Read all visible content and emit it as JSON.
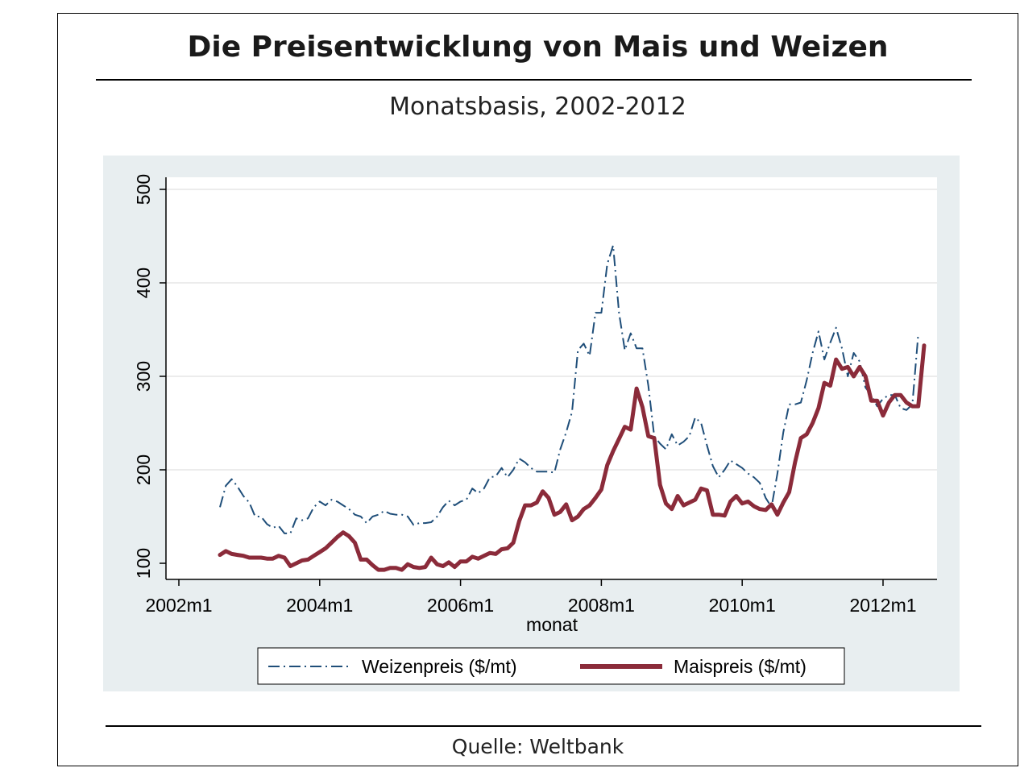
{
  "page": {
    "title": "Die Preisentwicklung von Mais und Weizen",
    "subtitle": "Monatsbasis, 2002-2012",
    "source": "Quelle:  Weltbank"
  },
  "chart_data": {
    "type": "line",
    "title": "Die Preisentwicklung von Mais und Weizen",
    "subtitle": "Monatsbasis, 2002-2012",
    "xlabel": "monat",
    "ylabel": "",
    "xlim": [
      2002.0,
      2012.75
    ],
    "ylim": [
      80,
      515
    ],
    "xticks": [
      {
        "value": 2002,
        "label": "2002m1"
      },
      {
        "value": 2004,
        "label": "2004m1"
      },
      {
        "value": 2006,
        "label": "2006m1"
      },
      {
        "value": 2008,
        "label": "2008m1"
      },
      {
        "value": 2010,
        "label": "2010m1"
      },
      {
        "value": 2012,
        "label": "2012m1"
      }
    ],
    "yticks": [
      100,
      200,
      300,
      400,
      500
    ],
    "grid": true,
    "legend_position": "bottom",
    "colors": {
      "wheat": "#1f4e79",
      "maize": "#8b2b3a",
      "plot_bg": "#ffffff",
      "outer_bg": "#e8eef0"
    },
    "series": [
      {
        "name": "Weizenpreis ($/mt)",
        "style": "dash-dot",
        "points": [
          [
            2002.583,
            160
          ],
          [
            2002.667,
            183
          ],
          [
            2002.75,
            190
          ],
          [
            2002.833,
            182
          ],
          [
            2002.917,
            172
          ],
          [
            2003.0,
            165
          ],
          [
            2003.083,
            150
          ],
          [
            2003.167,
            150
          ],
          [
            2003.25,
            142
          ],
          [
            2003.333,
            138
          ],
          [
            2003.417,
            140
          ],
          [
            2003.5,
            132
          ],
          [
            2003.583,
            132
          ],
          [
            2003.667,
            148
          ],
          [
            2003.75,
            146
          ],
          [
            2003.833,
            148
          ],
          [
            2003.917,
            160
          ],
          [
            2004.0,
            166
          ],
          [
            2004.083,
            162
          ],
          [
            2004.167,
            168
          ],
          [
            2004.25,
            166
          ],
          [
            2004.333,
            162
          ],
          [
            2004.417,
            158
          ],
          [
            2004.5,
            152
          ],
          [
            2004.583,
            150
          ],
          [
            2004.667,
            143
          ],
          [
            2004.75,
            150
          ],
          [
            2004.833,
            152
          ],
          [
            2004.917,
            156
          ],
          [
            2005.0,
            153
          ],
          [
            2005.083,
            152
          ],
          [
            2005.167,
            152
          ],
          [
            2005.25,
            150
          ],
          [
            2005.333,
            141
          ],
          [
            2005.417,
            143
          ],
          [
            2005.5,
            143
          ],
          [
            2005.583,
            144
          ],
          [
            2005.667,
            150
          ],
          [
            2005.75,
            160
          ],
          [
            2005.833,
            167
          ],
          [
            2005.917,
            162
          ],
          [
            2006.0,
            166
          ],
          [
            2006.083,
            168
          ],
          [
            2006.167,
            180
          ],
          [
            2006.25,
            175
          ],
          [
            2006.333,
            180
          ],
          [
            2006.417,
            192
          ],
          [
            2006.5,
            193
          ],
          [
            2006.583,
            202
          ],
          [
            2006.667,
            192
          ],
          [
            2006.75,
            200
          ],
          [
            2006.833,
            212
          ],
          [
            2006.917,
            208
          ],
          [
            2007.0,
            202
          ],
          [
            2007.083,
            198
          ],
          [
            2007.167,
            198
          ],
          [
            2007.25,
            198
          ],
          [
            2007.333,
            197
          ],
          [
            2007.417,
            222
          ],
          [
            2007.5,
            240
          ],
          [
            2007.583,
            262
          ],
          [
            2007.667,
            328
          ],
          [
            2007.75,
            335
          ],
          [
            2007.833,
            322
          ],
          [
            2007.917,
            368
          ],
          [
            2008.0,
            368
          ],
          [
            2008.083,
            420
          ],
          [
            2008.167,
            440
          ],
          [
            2008.25,
            368
          ],
          [
            2008.333,
            328
          ],
          [
            2008.417,
            346
          ],
          [
            2008.5,
            330
          ],
          [
            2008.583,
            330
          ],
          [
            2008.667,
            290
          ],
          [
            2008.75,
            236
          ],
          [
            2008.833,
            228
          ],
          [
            2008.917,
            222
          ],
          [
            2009.0,
            238
          ],
          [
            2009.083,
            226
          ],
          [
            2009.167,
            230
          ],
          [
            2009.25,
            236
          ],
          [
            2009.333,
            256
          ],
          [
            2009.417,
            250
          ],
          [
            2009.5,
            226
          ],
          [
            2009.583,
            204
          ],
          [
            2009.667,
            192
          ],
          [
            2009.75,
            200
          ],
          [
            2009.833,
            210
          ],
          [
            2009.917,
            206
          ],
          [
            2010.0,
            202
          ],
          [
            2010.083,
            196
          ],
          [
            2010.167,
            192
          ],
          [
            2010.25,
            186
          ],
          [
            2010.333,
            170
          ],
          [
            2010.417,
            160
          ],
          [
            2010.5,
            196
          ],
          [
            2010.583,
            240
          ],
          [
            2010.667,
            270
          ],
          [
            2010.75,
            270
          ],
          [
            2010.833,
            272
          ],
          [
            2010.917,
            296
          ],
          [
            2011.0,
            325
          ],
          [
            2011.083,
            348
          ],
          [
            2011.167,
            318
          ],
          [
            2011.25,
            336
          ],
          [
            2011.333,
            352
          ],
          [
            2011.417,
            330
          ],
          [
            2011.5,
            300
          ],
          [
            2011.583,
            325
          ],
          [
            2011.667,
            316
          ],
          [
            2011.75,
            288
          ],
          [
            2011.833,
            280
          ],
          [
            2011.917,
            268
          ],
          [
            2012.0,
            276
          ],
          [
            2012.083,
            280
          ],
          [
            2012.167,
            280
          ],
          [
            2012.25,
            266
          ],
          [
            2012.333,
            264
          ],
          [
            2012.417,
            270
          ],
          [
            2012.5,
            345
          ]
        ]
      },
      {
        "name": "Maispreis ($/mt)",
        "style": "solid-thick",
        "points": [
          [
            2002.583,
            109
          ],
          [
            2002.667,
            113
          ],
          [
            2002.75,
            110
          ],
          [
            2002.833,
            109
          ],
          [
            2002.917,
            108
          ],
          [
            2003.0,
            106
          ],
          [
            2003.083,
            106
          ],
          [
            2003.167,
            106
          ],
          [
            2003.25,
            105
          ],
          [
            2003.333,
            105
          ],
          [
            2003.417,
            108
          ],
          [
            2003.5,
            106
          ],
          [
            2003.583,
            97
          ],
          [
            2003.667,
            100
          ],
          [
            2003.75,
            103
          ],
          [
            2003.833,
            104
          ],
          [
            2003.917,
            108
          ],
          [
            2004.0,
            112
          ],
          [
            2004.083,
            116
          ],
          [
            2004.167,
            122
          ],
          [
            2004.25,
            128
          ],
          [
            2004.333,
            133
          ],
          [
            2004.417,
            129
          ],
          [
            2004.5,
            122
          ],
          [
            2004.583,
            104
          ],
          [
            2004.667,
            104
          ],
          [
            2004.75,
            98
          ],
          [
            2004.833,
            93
          ],
          [
            2004.917,
            93
          ],
          [
            2005.0,
            95
          ],
          [
            2005.083,
            95
          ],
          [
            2005.167,
            93
          ],
          [
            2005.25,
            99
          ],
          [
            2005.333,
            96
          ],
          [
            2005.417,
            95
          ],
          [
            2005.5,
            96
          ],
          [
            2005.583,
            106
          ],
          [
            2005.667,
            99
          ],
          [
            2005.75,
            97
          ],
          [
            2005.833,
            101
          ],
          [
            2005.917,
            96
          ],
          [
            2006.0,
            102
          ],
          [
            2006.083,
            102
          ],
          [
            2006.167,
            107
          ],
          [
            2006.25,
            105
          ],
          [
            2006.333,
            108
          ],
          [
            2006.417,
            111
          ],
          [
            2006.5,
            110
          ],
          [
            2006.583,
            115
          ],
          [
            2006.667,
            116
          ],
          [
            2006.75,
            122
          ],
          [
            2006.833,
            145
          ],
          [
            2006.917,
            162
          ],
          [
            2007.0,
            162
          ],
          [
            2007.083,
            165
          ],
          [
            2007.167,
            177
          ],
          [
            2007.25,
            170
          ],
          [
            2007.333,
            152
          ],
          [
            2007.417,
            155
          ],
          [
            2007.5,
            163
          ],
          [
            2007.583,
            146
          ],
          [
            2007.667,
            150
          ],
          [
            2007.75,
            158
          ],
          [
            2007.833,
            162
          ],
          [
            2007.917,
            170
          ],
          [
            2008.0,
            179
          ],
          [
            2008.083,
            205
          ],
          [
            2008.167,
            220
          ],
          [
            2008.25,
            233
          ],
          [
            2008.333,
            246
          ],
          [
            2008.417,
            243
          ],
          [
            2008.5,
            287
          ],
          [
            2008.583,
            267
          ],
          [
            2008.667,
            236
          ],
          [
            2008.75,
            234
          ],
          [
            2008.833,
            184
          ],
          [
            2008.917,
            164
          ],
          [
            2009.0,
            158
          ],
          [
            2009.083,
            172
          ],
          [
            2009.167,
            162
          ],
          [
            2009.25,
            165
          ],
          [
            2009.333,
            168
          ],
          [
            2009.417,
            180
          ],
          [
            2009.5,
            178
          ],
          [
            2009.583,
            152
          ],
          [
            2009.667,
            152
          ],
          [
            2009.75,
            151
          ],
          [
            2009.833,
            166
          ],
          [
            2009.917,
            172
          ],
          [
            2010.0,
            164
          ],
          [
            2010.083,
            166
          ],
          [
            2010.167,
            161
          ],
          [
            2010.25,
            158
          ],
          [
            2010.333,
            157
          ],
          [
            2010.417,
            163
          ],
          [
            2010.5,
            152
          ],
          [
            2010.583,
            165
          ],
          [
            2010.667,
            176
          ],
          [
            2010.75,
            208
          ],
          [
            2010.833,
            234
          ],
          [
            2010.917,
            238
          ],
          [
            2011.0,
            250
          ],
          [
            2011.083,
            266
          ],
          [
            2011.167,
            293
          ],
          [
            2011.25,
            290
          ],
          [
            2011.333,
            318
          ],
          [
            2011.417,
            308
          ],
          [
            2011.5,
            310
          ],
          [
            2011.583,
            300
          ],
          [
            2011.667,
            310
          ],
          [
            2011.75,
            300
          ],
          [
            2011.833,
            274
          ],
          [
            2011.917,
            274
          ],
          [
            2012.0,
            258
          ],
          [
            2012.083,
            272
          ],
          [
            2012.167,
            280
          ],
          [
            2012.25,
            280
          ],
          [
            2012.333,
            272
          ],
          [
            2012.417,
            268
          ],
          [
            2012.5,
            268
          ],
          [
            2012.583,
            333
          ]
        ]
      }
    ]
  }
}
